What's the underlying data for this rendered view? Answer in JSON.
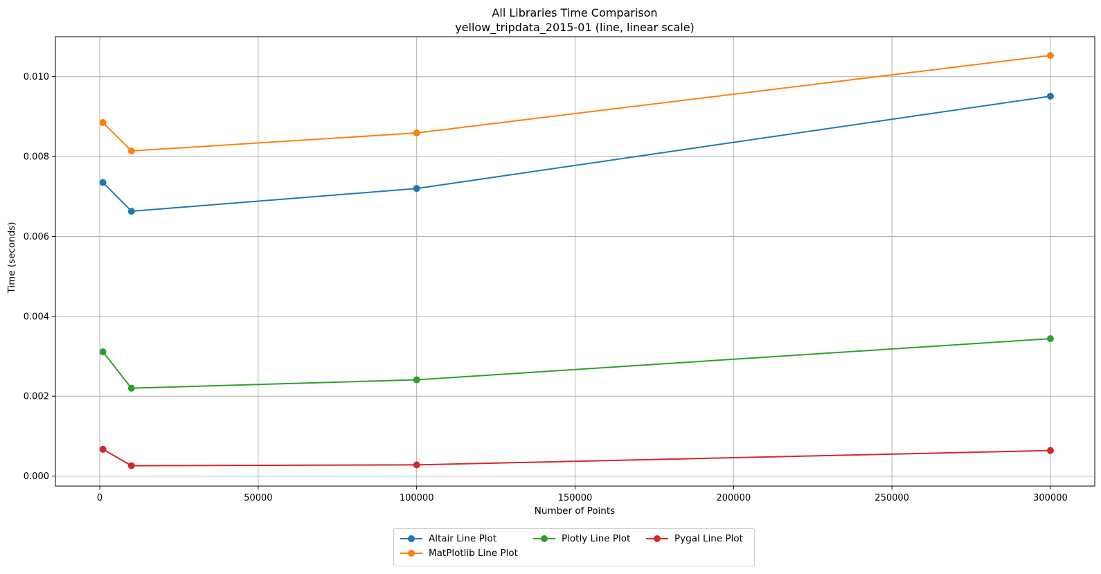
{
  "chart_data": {
    "type": "line",
    "title": "All Libraries Time Comparison",
    "subtitle": "yellow_tripdata_2015-01 (line, linear scale)",
    "xlabel": "Number of Points",
    "ylabel": "Time (seconds)",
    "xlim": [
      -14000,
      314000
    ],
    "ylim": [
      -0.00025,
      0.011
    ],
    "xticks": [
      0,
      50000,
      100000,
      150000,
      200000,
      250000,
      300000
    ],
    "yticks": [
      0.0,
      0.002,
      0.004,
      0.006,
      0.008,
      0.01
    ],
    "ytick_labels": [
      "0.000",
      "0.002",
      "0.004",
      "0.006",
      "0.008",
      "0.010"
    ],
    "grid": true,
    "legend_position": "bottom-center, below plot",
    "x": [
      1000,
      10000,
      100000,
      300000
    ],
    "series": [
      {
        "name": "Altair Line Plot",
        "color": "#1f77b4",
        "values": [
          0.00735,
          0.00663,
          0.0072,
          0.00951
        ]
      },
      {
        "name": "MatPlotlib Line Plot",
        "color": "#ff7f0e",
        "values": [
          0.00885,
          0.00814,
          0.00859,
          0.01053
        ]
      },
      {
        "name": "Plotly Line Plot",
        "color": "#2ca02c",
        "values": [
          0.00311,
          0.0022,
          0.00241,
          0.00344
        ]
      },
      {
        "name": "Pygal Line Plot",
        "color": "#d62728",
        "values": [
          0.00067,
          0.00026,
          0.00028,
          0.00064
        ]
      }
    ]
  }
}
